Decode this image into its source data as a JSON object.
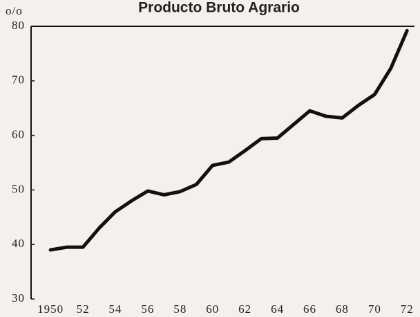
{
  "chart_data": {
    "type": "line",
    "title": "Producto Bruto Agrario",
    "y_unit": "o/o",
    "x": [
      1950,
      1951,
      1952,
      1953,
      1954,
      1955,
      1956,
      1957,
      1958,
      1959,
      1960,
      1961,
      1962,
      1963,
      1964,
      1965,
      1966,
      1967,
      1968,
      1969,
      1970,
      1971,
      1972
    ],
    "series": [
      {
        "name": "Producto Bruto Agrario",
        "color": "#111111",
        "values": [
          39,
          39.5,
          39.5,
          43,
          46,
          48,
          49.8,
          49.1,
          49.7,
          51,
          54.5,
          55.1,
          57.2,
          59.4,
          59.5,
          62,
          64.5,
          63.5,
          63.2,
          65.5,
          67.5,
          72.3,
          79.2
        ]
      }
    ],
    "xlim": [
      1948.8,
      1972.8
    ],
    "ylim": [
      30,
      80
    ],
    "xticks": [
      1950,
      {
        "value": 1952,
        "label": "52"
      },
      {
        "value": 1954,
        "label": "54"
      },
      {
        "value": 1956,
        "label": "56"
      },
      {
        "value": 1958,
        "label": "58"
      },
      {
        "value": 1960,
        "label": "60"
      },
      {
        "value": 1962,
        "label": "62"
      },
      {
        "value": 1964,
        "label": "64"
      },
      {
        "value": 1966,
        "label": "66"
      },
      {
        "value": 1968,
        "label": "68"
      },
      {
        "value": 1970,
        "label": "70"
      },
      {
        "value": 1972,
        "label": "72"
      }
    ],
    "yticks": [
      30,
      40,
      50,
      60,
      70,
      80
    ],
    "grid": false
  }
}
